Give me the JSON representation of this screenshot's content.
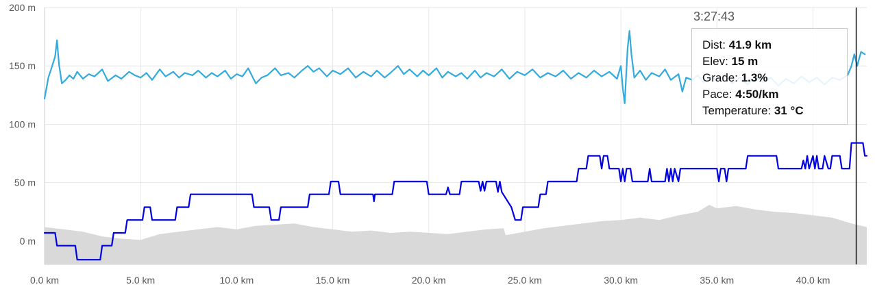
{
  "chart_data": {
    "type": "line",
    "x_axis": {
      "unit": "km",
      "range": [
        0,
        42.8
      ],
      "ticks": [
        0,
        5,
        10,
        15,
        20,
        25,
        30,
        35,
        40
      ],
      "tick_labels": [
        "0.0 km",
        "5.0 km",
        "10.0 km",
        "15.0 km",
        "20.0 km",
        "25.0 km",
        "30.0 km",
        "35.0 km",
        "40.0 km"
      ]
    },
    "y_axis": {
      "unit": "m",
      "range": [
        -20,
        200
      ],
      "ticks": [
        0,
        50,
        100,
        150,
        200
      ],
      "tick_labels": [
        "0 m",
        "50 m",
        "100 m",
        "150 m",
        "200 m"
      ]
    },
    "grid": true,
    "series": [
      {
        "kind": "area",
        "color": "#d9d9d9",
        "points": [
          [
            0,
            12
          ],
          [
            1,
            10
          ],
          [
            2,
            8
          ],
          [
            3,
            4
          ],
          [
            4,
            2
          ],
          [
            5,
            1
          ],
          [
            6,
            6
          ],
          [
            7,
            8
          ],
          [
            8,
            10
          ],
          [
            9,
            12
          ],
          [
            10,
            10
          ],
          [
            11,
            13
          ],
          [
            12,
            14
          ],
          [
            13,
            15
          ],
          [
            14,
            12
          ],
          [
            15,
            10
          ],
          [
            16,
            8
          ],
          [
            17,
            9
          ],
          [
            18,
            7
          ],
          [
            19,
            8
          ],
          [
            20,
            7
          ],
          [
            21,
            6
          ],
          [
            22,
            8
          ],
          [
            23,
            10
          ],
          [
            23.9,
            11
          ],
          [
            24,
            5
          ],
          [
            25,
            8
          ],
          [
            26,
            11
          ],
          [
            27,
            13
          ],
          [
            28,
            15
          ],
          [
            29,
            17
          ],
          [
            30,
            18
          ],
          [
            31,
            20
          ],
          [
            32,
            18
          ],
          [
            33,
            22
          ],
          [
            34,
            25
          ],
          [
            34.6,
            31
          ],
          [
            35,
            28
          ],
          [
            36,
            30
          ],
          [
            37,
            27
          ],
          [
            38,
            25
          ],
          [
            39,
            24
          ],
          [
            40,
            22
          ],
          [
            41,
            20
          ],
          [
            42,
            15
          ],
          [
            42.8,
            12
          ]
        ]
      },
      {
        "kind": "line",
        "color": "#0000e0",
        "points": [
          [
            0,
            7
          ],
          [
            0.55,
            7
          ],
          [
            0.65,
            -4
          ],
          [
            1.6,
            -4
          ],
          [
            1.7,
            -16
          ],
          [
            2.9,
            -16
          ],
          [
            3.0,
            -4
          ],
          [
            3.5,
            -4
          ],
          [
            3.6,
            7
          ],
          [
            4.2,
            7
          ],
          [
            4.3,
            18
          ],
          [
            5.1,
            18
          ],
          [
            5.2,
            29
          ],
          [
            5.5,
            29
          ],
          [
            5.6,
            18
          ],
          [
            6.8,
            18
          ],
          [
            6.9,
            29
          ],
          [
            7.5,
            29
          ],
          [
            7.6,
            40
          ],
          [
            10.8,
            40
          ],
          [
            10.9,
            29
          ],
          [
            11.7,
            29
          ],
          [
            11.8,
            18
          ],
          [
            12.2,
            18
          ],
          [
            12.3,
            29
          ],
          [
            13.7,
            29
          ],
          [
            13.8,
            40
          ],
          [
            14.8,
            40
          ],
          [
            14.9,
            51
          ],
          [
            15.3,
            51
          ],
          [
            15.4,
            40
          ],
          [
            17.1,
            40
          ],
          [
            17.15,
            34
          ],
          [
            17.2,
            40
          ],
          [
            18.1,
            40
          ],
          [
            18.2,
            51
          ],
          [
            19.9,
            51
          ],
          [
            20.0,
            40
          ],
          [
            20.9,
            40
          ],
          [
            21.0,
            46
          ],
          [
            21.1,
            40
          ],
          [
            21.6,
            40
          ],
          [
            21.7,
            51
          ],
          [
            22.6,
            51
          ],
          [
            22.7,
            43
          ],
          [
            22.8,
            51
          ],
          [
            22.9,
            43
          ],
          [
            23.0,
            51
          ],
          [
            23.5,
            51
          ],
          [
            23.6,
            42
          ],
          [
            23.7,
            51
          ],
          [
            23.8,
            42
          ],
          [
            24.3,
            29
          ],
          [
            24.5,
            18
          ],
          [
            24.8,
            18
          ],
          [
            24.9,
            29
          ],
          [
            25.7,
            29
          ],
          [
            25.8,
            40
          ],
          [
            26.1,
            40
          ],
          [
            26.2,
            51
          ],
          [
            27.7,
            51
          ],
          [
            27.8,
            62
          ],
          [
            28.2,
            62
          ],
          [
            28.3,
            73
          ],
          [
            28.9,
            73
          ],
          [
            29.0,
            62
          ],
          [
            29.1,
            73
          ],
          [
            29.3,
            73
          ],
          [
            29.4,
            62
          ],
          [
            29.9,
            62
          ],
          [
            30.0,
            51
          ],
          [
            30.1,
            62
          ],
          [
            30.2,
            51
          ],
          [
            30.3,
            62
          ],
          [
            30.5,
            62
          ],
          [
            30.6,
            51
          ],
          [
            31.4,
            51
          ],
          [
            31.5,
            62
          ],
          [
            31.6,
            51
          ],
          [
            32.3,
            51
          ],
          [
            32.4,
            62
          ],
          [
            32.5,
            51
          ],
          [
            32.6,
            62
          ],
          [
            32.7,
            51
          ],
          [
            32.8,
            62
          ],
          [
            33.0,
            51
          ],
          [
            33.1,
            62
          ],
          [
            35.0,
            62
          ],
          [
            35.1,
            51
          ],
          [
            35.2,
            62
          ],
          [
            35.4,
            62
          ],
          [
            35.5,
            51
          ],
          [
            35.6,
            62
          ],
          [
            36.5,
            62
          ],
          [
            36.6,
            73
          ],
          [
            38.1,
            73
          ],
          [
            38.2,
            62
          ],
          [
            39.4,
            62
          ],
          [
            39.5,
            69
          ],
          [
            39.6,
            62
          ],
          [
            39.7,
            73
          ],
          [
            39.8,
            62
          ],
          [
            40.0,
            73
          ],
          [
            40.1,
            62
          ],
          [
            40.2,
            73
          ],
          [
            40.3,
            62
          ],
          [
            40.5,
            62
          ],
          [
            40.6,
            73
          ],
          [
            40.8,
            62
          ],
          [
            40.9,
            62
          ],
          [
            41.0,
            73
          ],
          [
            41.1,
            73
          ],
          [
            41.4,
            73
          ],
          [
            41.5,
            62
          ],
          [
            41.9,
            62
          ],
          [
            42.0,
            84
          ],
          [
            42.6,
            84
          ],
          [
            42.7,
            73
          ],
          [
            42.8,
            73
          ]
        ]
      },
      {
        "kind": "line",
        "color": "#33aadd",
        "points": [
          [
            0,
            122
          ],
          [
            0.2,
            140
          ],
          [
            0.4,
            150
          ],
          [
            0.55,
            158
          ],
          [
            0.65,
            172
          ],
          [
            0.75,
            152
          ],
          [
            0.9,
            135
          ],
          [
            1.1,
            138
          ],
          [
            1.3,
            142
          ],
          [
            1.5,
            139
          ],
          [
            1.7,
            145
          ],
          [
            2,
            139
          ],
          [
            2.3,
            143
          ],
          [
            2.6,
            141
          ],
          [
            3,
            147
          ],
          [
            3.3,
            137
          ],
          [
            3.7,
            142
          ],
          [
            4,
            139
          ],
          [
            4.4,
            145
          ],
          [
            4.7,
            142
          ],
          [
            5,
            140
          ],
          [
            5.3,
            144
          ],
          [
            5.6,
            138
          ],
          [
            6,
            147
          ],
          [
            6.3,
            141
          ],
          [
            6.7,
            145
          ],
          [
            7,
            140
          ],
          [
            7.3,
            144
          ],
          [
            7.7,
            142
          ],
          [
            8,
            146
          ],
          [
            8.4,
            140
          ],
          [
            8.7,
            144
          ],
          [
            9,
            141
          ],
          [
            9.4,
            146
          ],
          [
            9.7,
            139
          ],
          [
            10,
            143
          ],
          [
            10.3,
            141
          ],
          [
            10.6,
            148
          ],
          [
            11,
            135
          ],
          [
            11.3,
            140
          ],
          [
            11.6,
            142
          ],
          [
            12,
            148
          ],
          [
            12.3,
            142
          ],
          [
            12.7,
            144
          ],
          [
            13,
            140
          ],
          [
            13.4,
            146
          ],
          [
            13.7,
            150
          ],
          [
            14,
            145
          ],
          [
            14.3,
            148
          ],
          [
            14.7,
            141
          ],
          [
            15,
            146
          ],
          [
            15.4,
            143
          ],
          [
            15.8,
            148
          ],
          [
            16.2,
            140
          ],
          [
            16.6,
            145
          ],
          [
            17,
            141
          ],
          [
            17.3,
            146
          ],
          [
            17.7,
            140
          ],
          [
            18,
            144
          ],
          [
            18.4,
            150
          ],
          [
            18.7,
            143
          ],
          [
            19,
            147
          ],
          [
            19.4,
            141
          ],
          [
            19.7,
            146
          ],
          [
            20,
            142
          ],
          [
            20.4,
            148
          ],
          [
            20.7,
            140
          ],
          [
            21,
            145
          ],
          [
            21.4,
            141
          ],
          [
            21.7,
            144
          ],
          [
            22,
            139
          ],
          [
            22.4,
            146
          ],
          [
            22.7,
            140
          ],
          [
            23,
            144
          ],
          [
            23.4,
            141
          ],
          [
            23.8,
            147
          ],
          [
            24.2,
            139
          ],
          [
            24.6,
            145
          ],
          [
            25,
            142
          ],
          [
            25.4,
            147
          ],
          [
            25.8,
            140
          ],
          [
            26.2,
            144
          ],
          [
            26.6,
            141
          ],
          [
            27,
            146
          ],
          [
            27.4,
            139
          ],
          [
            27.8,
            144
          ],
          [
            28.2,
            140
          ],
          [
            28.6,
            146
          ],
          [
            29,
            141
          ],
          [
            29.4,
            145
          ],
          [
            29.8,
            139
          ],
          [
            30,
            150
          ],
          [
            30.1,
            131
          ],
          [
            30.2,
            118
          ],
          [
            30.35,
            165
          ],
          [
            30.45,
            180
          ],
          [
            30.55,
            160
          ],
          [
            30.7,
            140
          ],
          [
            31,
            146
          ],
          [
            31.3,
            138
          ],
          [
            31.6,
            144
          ],
          [
            32,
            141
          ],
          [
            32.3,
            147
          ],
          [
            32.6,
            138
          ],
          [
            33,
            143
          ],
          [
            33.2,
            128
          ],
          [
            33.4,
            140
          ],
          [
            33.7,
            138
          ],
          [
            34,
            142
          ],
          [
            34.3,
            136
          ],
          [
            34.7,
            141
          ],
          [
            35,
            137
          ],
          [
            35.4,
            143
          ],
          [
            35.8,
            135
          ],
          [
            36.2,
            140
          ],
          [
            36.6,
            134
          ],
          [
            37,
            141
          ],
          [
            37.4,
            136
          ],
          [
            37.8,
            140
          ],
          [
            38.2,
            133
          ],
          [
            38.6,
            139
          ],
          [
            39,
            135
          ],
          [
            39.4,
            141
          ],
          [
            39.8,
            136
          ],
          [
            40.2,
            140
          ],
          [
            40.6,
            134
          ],
          [
            41,
            140
          ],
          [
            41.4,
            138
          ],
          [
            41.8,
            142
          ],
          [
            42.0,
            150
          ],
          [
            42.15,
            160
          ],
          [
            42.3,
            150
          ],
          [
            42.5,
            162
          ],
          [
            42.7,
            160
          ]
        ]
      }
    ],
    "cursor": {
      "x": 42.25
    }
  },
  "tooltip": {
    "time": "3:27:43",
    "rows": [
      {
        "label": "Dist:",
        "value": "41.9 km"
      },
      {
        "label": "Elev:",
        "value": "15 m"
      },
      {
        "label": "Grade:",
        "value": "1.3%"
      },
      {
        "label": "Pace:",
        "value": "4:50/km"
      },
      {
        "label": "Temperature:",
        "value": "31 °C"
      }
    ]
  }
}
